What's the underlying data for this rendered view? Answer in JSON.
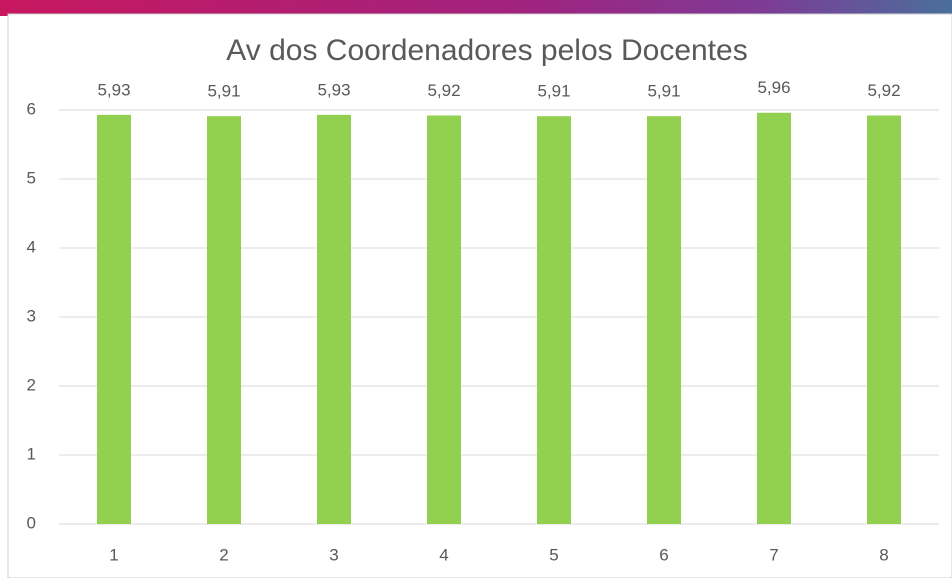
{
  "chart_data": {
    "type": "bar",
    "title": "Av dos Coordenadores pelos Docentes",
    "categories": [
      "1",
      "2",
      "3",
      "4",
      "5",
      "6",
      "7",
      "8"
    ],
    "values": [
      5.93,
      5.91,
      5.93,
      5.92,
      5.91,
      5.91,
      5.96,
      5.92
    ],
    "value_labels": [
      "5,93",
      "5,91",
      "5,93",
      "5,92",
      "5,91",
      "5,91",
      "5,96",
      "5,92"
    ],
    "color": "#92d050",
    "ylim": [
      0,
      6
    ],
    "yticks": [
      0,
      1,
      2,
      3,
      4,
      5,
      6
    ],
    "grid": true
  }
}
